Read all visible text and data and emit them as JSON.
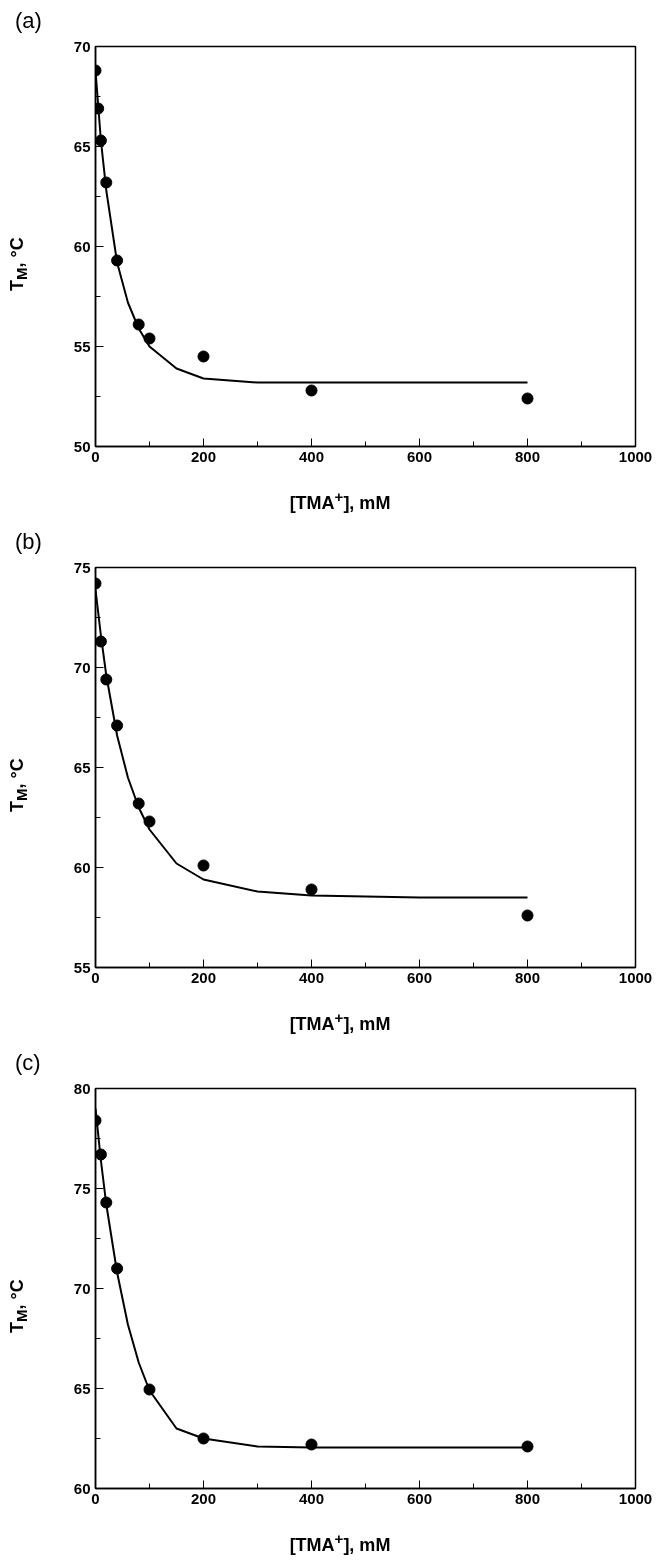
{
  "chart_data": [
    {
      "type": "scatter",
      "title": "(a)",
      "xlabel": "[TMA$^{+}$], mM",
      "ylabel": "T$_{M}$, °C",
      "xlim": [
        0,
        1000
      ],
      "ylim": [
        50,
        70
      ],
      "xticks": [
        0,
        200,
        400,
        600,
        800,
        1000
      ],
      "yticks": [
        50,
        55,
        60,
        65,
        70
      ],
      "series": [
        {
          "marker": "circle",
          "color": "#000000",
          "x": [
            0,
            5,
            10,
            20,
            40,
            80,
            100,
            200,
            400,
            800
          ],
          "values": [
            68.8,
            66.9,
            65.3,
            63.2,
            59.3,
            56.1,
            55.4,
            54.5,
            52.8,
            52.4
          ]
        },
        {
          "type": "line",
          "color": "#000000",
          "x": [
            0,
            10,
            20,
            40,
            60,
            80,
            100,
            150,
            200,
            300,
            400,
            800
          ],
          "values": [
            68.8,
            65.3,
            62.8,
            59.2,
            57.2,
            55.9,
            55.0,
            53.9,
            53.4,
            53.2,
            53.2,
            53.2
          ]
        }
      ]
    },
    {
      "type": "scatter",
      "title": "(b)",
      "xlabel": "[TMA$^{+}$], mM",
      "ylabel": "T$_{M}$, °C",
      "xlim": [
        0,
        1000
      ],
      "ylim": [
        55,
        75
      ],
      "xticks": [
        0,
        200,
        400,
        600,
        800,
        1000
      ],
      "yticks": [
        55,
        60,
        65,
        70,
        75
      ],
      "series": [
        {
          "marker": "circle",
          "color": "#000000",
          "x": [
            0,
            10,
            20,
            40,
            80,
            100,
            200,
            400,
            800
          ],
          "values": [
            74.2,
            71.3,
            69.4,
            67.1,
            63.2,
            62.3,
            60.1,
            58.9,
            57.6
          ]
        },
        {
          "type": "line",
          "color": "#000000",
          "x": [
            0,
            10,
            20,
            40,
            60,
            80,
            100,
            150,
            200,
            300,
            400,
            600,
            800
          ],
          "values": [
            73.9,
            71.6,
            69.6,
            66.6,
            64.5,
            63.0,
            61.9,
            60.2,
            59.4,
            58.8,
            58.6,
            58.5,
            58.5
          ]
        }
      ]
    },
    {
      "type": "scatter",
      "title": "(c)",
      "xlabel": "[TMA$^{+}$], mM",
      "ylabel": "T$_{M}$, °C",
      "xlim": [
        0,
        1000
      ],
      "ylim": [
        60,
        80
      ],
      "xticks": [
        0,
        200,
        400,
        600,
        800,
        1000
      ],
      "yticks": [
        60,
        65,
        70,
        75,
        80
      ],
      "series": [
        {
          "marker": "circle",
          "color": "#000000",
          "x": [
            0,
            10,
            20,
            40,
            100,
            200,
            400,
            800
          ],
          "values": [
            78.4,
            76.7,
            74.3,
            71.0,
            64.95,
            62.5,
            62.2,
            62.1
          ]
        },
        {
          "type": "line",
          "color": "#000000",
          "x": [
            0,
            10,
            20,
            40,
            60,
            80,
            100,
            150,
            200,
            300,
            400,
            800
          ],
          "values": [
            79.0,
            76.4,
            74.2,
            70.8,
            68.2,
            66.3,
            64.9,
            63.0,
            62.5,
            62.1,
            62.05,
            62.05
          ]
        }
      ]
    }
  ]
}
